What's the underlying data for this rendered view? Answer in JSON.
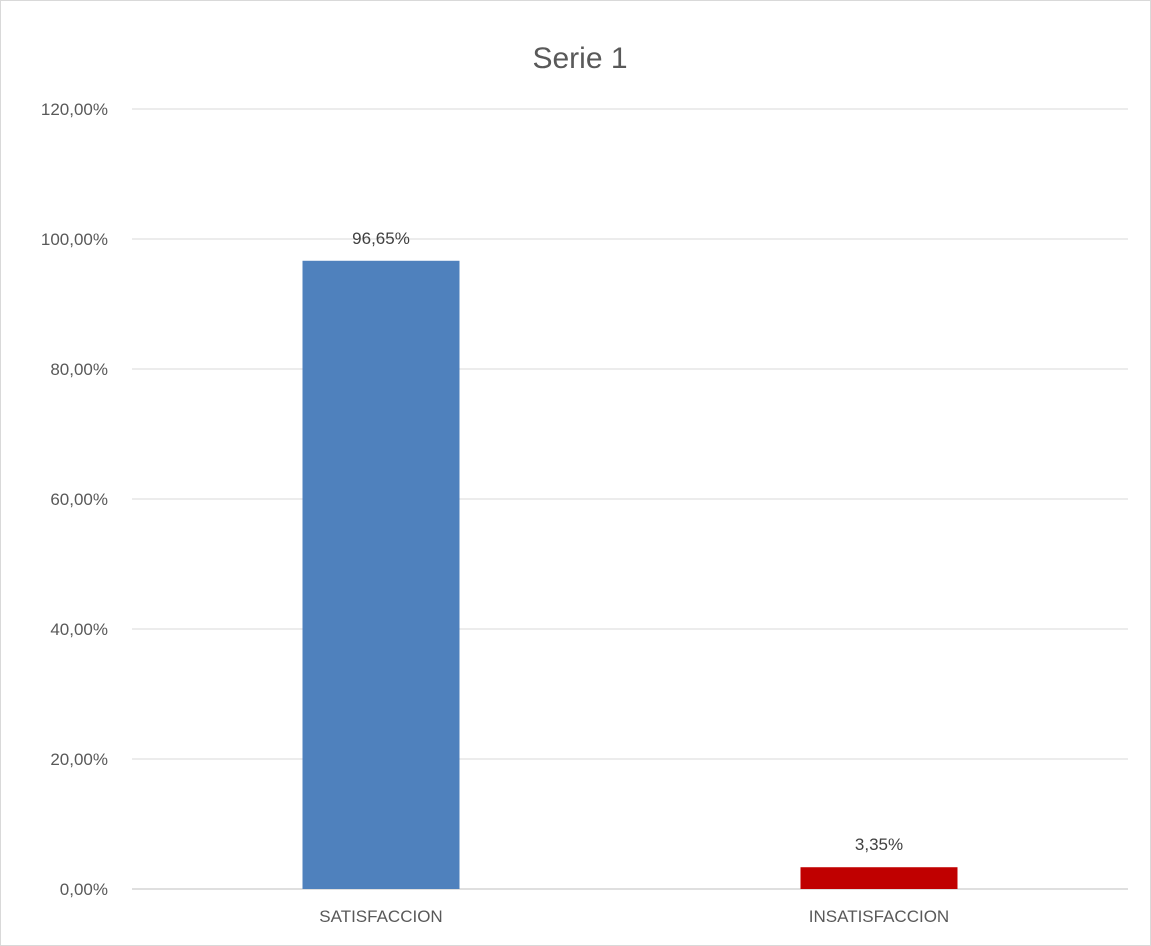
{
  "chart_data": {
    "type": "bar",
    "title": "Serie 1",
    "categories": [
      "SATISFACCION",
      "INSATISFACCION"
    ],
    "series": [
      {
        "values": [
          96.65,
          3.35
        ],
        "colors": [
          "#4f81bd",
          "#c00000"
        ],
        "data_labels": [
          "96,65%",
          "3,35%"
        ]
      }
    ],
    "ylim": [
      0,
      120
    ],
    "yticks": [
      0,
      20,
      40,
      60,
      80,
      100,
      120
    ],
    "ytick_labels": [
      "0,00%",
      "20,00%",
      "40,00%",
      "60,00%",
      "80,00%",
      "100,00%",
      "120,00%"
    ],
    "grid": true,
    "legend": "none"
  }
}
